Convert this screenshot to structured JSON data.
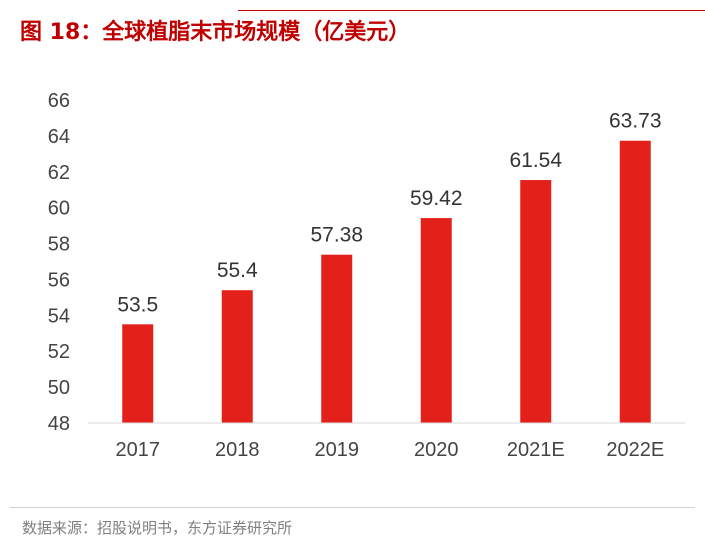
{
  "figure": {
    "title": "图 18：全球植脂末市场规模（亿美元）",
    "source": "数据来源：招股说明书，东方证券研究所"
  },
  "chart_data": {
    "type": "bar",
    "categories": [
      "2017",
      "2018",
      "2019",
      "2020",
      "2021E",
      "2022E"
    ],
    "values": [
      53.5,
      55.4,
      57.38,
      59.42,
      61.54,
      63.73
    ],
    "data_labels": [
      "53.5",
      "55.4",
      "57.38",
      "59.42",
      "61.54",
      "63.73"
    ],
    "y_ticks": [
      "48",
      "50",
      "52",
      "54",
      "56",
      "58",
      "60",
      "62",
      "64",
      "66"
    ],
    "ylim": [
      48,
      66
    ],
    "grid": false,
    "legend": "none",
    "bar_color": "#e3211a"
  }
}
